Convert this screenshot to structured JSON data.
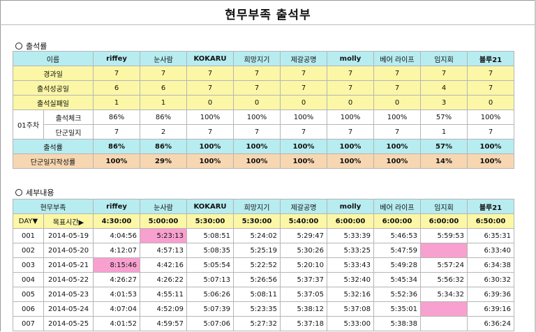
{
  "title": "현무부족 출석부",
  "attendance": {
    "section_label": "출석률",
    "name_header": "이름",
    "members": [
      "riffey",
      "눈사람",
      "KOKARU",
      "희망지기",
      "제갈공명",
      "molly",
      "베어 라이프",
      "임지회",
      "블루21"
    ],
    "rows": {
      "elapsed": {
        "label": "경과일",
        "values": [
          "7",
          "7",
          "7",
          "7",
          "7",
          "7",
          "7",
          "7",
          "7"
        ]
      },
      "success": {
        "label": "출석성공일",
        "values": [
          "6",
          "6",
          "7",
          "7",
          "7",
          "7",
          "7",
          "4",
          "7"
        ]
      },
      "fail": {
        "label": "출석실패일",
        "values": [
          "1",
          "1",
          "0",
          "0",
          "0",
          "0",
          "0",
          "3",
          "0"
        ]
      },
      "week_label": "01주차",
      "check": {
        "label": "출석체크",
        "values": [
          "86%",
          "86%",
          "100%",
          "100%",
          "100%",
          "100%",
          "100%",
          "57%",
          "100%"
        ]
      },
      "journal": {
        "label": "단군일지",
        "values": [
          "7",
          "2",
          "7",
          "7",
          "7",
          "7",
          "7",
          "1",
          "7"
        ]
      },
      "rate": {
        "label": "출석률",
        "values": [
          "86%",
          "86%",
          "100%",
          "100%",
          "100%",
          "100%",
          "100%",
          "57%",
          "100%"
        ]
      },
      "journal_rate": {
        "label": "단군일지작성률",
        "values": [
          "100%",
          "29%",
          "100%",
          "100%",
          "100%",
          "100%",
          "100%",
          "14%",
          "100%"
        ]
      }
    }
  },
  "details": {
    "section_label": "세부내용",
    "tribe_header": "현무부족",
    "day_header": "DAY▼",
    "target_header": "목표시간▶",
    "targets": [
      "4:30:00",
      "5:00:00",
      "5:30:00",
      "5:30:00",
      "5:40:00",
      "6:00:00",
      "6:00:00",
      "6:00:00",
      "6:50:00"
    ],
    "pink_color": "#f8a0cf",
    "rows": [
      {
        "day": "001",
        "date": "2014-05-19",
        "times": [
          "4:04:56",
          "5:23:13",
          "5:08:51",
          "5:24:02",
          "5:29:47",
          "5:33:39",
          "5:46:53",
          "5:59:53",
          "6:35:31"
        ],
        "pink": [
          1
        ]
      },
      {
        "day": "002",
        "date": "2014-05-20",
        "times": [
          "4:12:07",
          "4:57:13",
          "5:08:35",
          "5:25:19",
          "5:30:26",
          "5:33:25",
          "5:47:59",
          "",
          "6:33:40"
        ],
        "pink": [
          7
        ]
      },
      {
        "day": "003",
        "date": "2014-05-21",
        "times": [
          "8:15:46",
          "4:42:16",
          "5:05:54",
          "5:22:52",
          "5:20:10",
          "5:33:43",
          "5:49:28",
          "5:57:24",
          "6:34:38"
        ],
        "pink": [
          0
        ]
      },
      {
        "day": "004",
        "date": "2014-05-22",
        "times": [
          "4:26:27",
          "4:26:22",
          "5:07:13",
          "5:26:56",
          "5:37:37",
          "5:32:40",
          "5:45:34",
          "5:56:32",
          "6:30:32"
        ],
        "pink": []
      },
      {
        "day": "005",
        "date": "2014-05-23",
        "times": [
          "4:01:53",
          "4:55:11",
          "5:06:26",
          "5:08:11",
          "5:37:05",
          "5:32:16",
          "5:52:36",
          "5:34:32",
          "6:39:36"
        ],
        "pink": []
      },
      {
        "day": "006",
        "date": "2014-05-24",
        "times": [
          "4:07:04",
          "4:52:09",
          "5:07:39",
          "5:23:35",
          "5:38:12",
          "5:37:08",
          "5:35:01",
          "",
          "6:39:16"
        ],
        "pink": [
          7
        ]
      },
      {
        "day": "007",
        "date": "2014-05-25",
        "times": [
          "4:01:52",
          "4:59:57",
          "5:07:06",
          "5:27:32",
          "5:37:18",
          "5:33:00",
          "5:38:38",
          "",
          "6:36:24"
        ],
        "pink": []
      }
    ]
  }
}
